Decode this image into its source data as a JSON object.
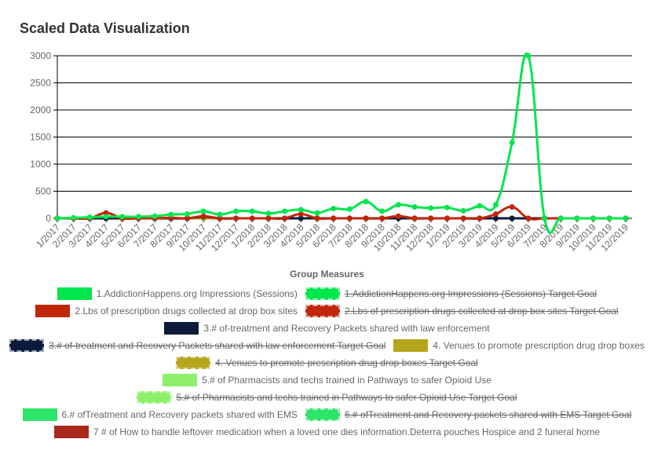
{
  "chart_data": {
    "type": "line",
    "title": "Scaled Data Visualization",
    "legend_title": "Group Measures",
    "categories": [
      "1/2017",
      "2/2017",
      "3/2017",
      "4/2017",
      "5/2017",
      "6/2017",
      "7/2017",
      "8/2017",
      "9/2017",
      "10/2017",
      "11/2017",
      "12/2017",
      "1/2018",
      "2/2018",
      "3/2018",
      "4/2018",
      "5/2018",
      "6/2018",
      "7/2018",
      "8/2018",
      "9/2018",
      "10/2018",
      "11/2018",
      "12/2018",
      "1/2019",
      "2/2019",
      "3/2019",
      "4/2019",
      "5/2019",
      "6/2019",
      "7/2019",
      "8/2019",
      "9/2019",
      "10/2019",
      "11/2019",
      "12/2019"
    ],
    "ylim": [
      0,
      3000
    ],
    "yticks": [
      0,
      500,
      1000,
      1500,
      2000,
      2500,
      3000
    ],
    "grid": true,
    "series": [
      {
        "name": "1.AddictionHappens.org Impressions (Sessions)",
        "color": "#00e64d",
        "values": [
          0,
          10,
          20,
          30,
          30,
          30,
          40,
          70,
          80,
          130,
          70,
          130,
          130,
          90,
          130,
          160,
          100,
          180,
          170,
          310,
          130,
          250,
          210,
          190,
          200,
          140,
          230,
          250,
          1400,
          3000,
          0,
          0,
          0,
          0,
          0,
          0
        ]
      },
      {
        "name": "1.AddictionHappens.org Impressions (Sessions) Target Goal",
        "color": "#00e64d",
        "hidden": true
      },
      {
        "name": "2.Lbs of prescription drugs collected at drop box sites",
        "color": "#c0260a",
        "values": [
          0,
          0,
          0,
          100,
          0,
          0,
          0,
          10,
          0,
          40,
          0,
          0,
          0,
          0,
          0,
          80,
          0,
          0,
          0,
          0,
          0,
          40,
          0,
          0,
          0,
          0,
          0,
          80,
          210,
          0,
          0,
          0,
          0,
          0,
          0,
          0
        ]
      },
      {
        "name": "2.Lbs of prescription drugs collected at drop box sites Target Goal",
        "color": "#c0260a",
        "hidden": true
      },
      {
        "name": "3.# of-treatment and Recovery Packets shared with law enforcement",
        "color": "#0d1b3a",
        "values": [
          0,
          0,
          0,
          0,
          0,
          0,
          0,
          0,
          0,
          30,
          0,
          0,
          0,
          0,
          0,
          0,
          0,
          0,
          0,
          0,
          0,
          0,
          0,
          0,
          0,
          0,
          0,
          0,
          0,
          0,
          0,
          0,
          0,
          0,
          0,
          0
        ]
      },
      {
        "name": "3.# of-treatment and Recovery Packets shared with law enforcement Target Goal",
        "color": "#0d1b3a",
        "hidden": true
      },
      {
        "name": "4. Venues to promote prescription drug drop boxes",
        "color": "#b5a61c",
        "values": [
          0,
          0,
          0,
          0,
          0,
          0,
          0,
          0,
          0,
          0,
          0,
          0,
          0,
          0,
          0,
          0,
          0,
          0,
          0,
          0,
          0,
          0,
          0,
          0,
          0,
          0,
          0,
          0,
          0,
          0,
          0,
          0,
          0,
          0,
          0,
          0
        ]
      },
      {
        "name": "4. Venues to promote prescription drug drop boxes Target Goal",
        "color": "#b5a61c",
        "hidden": true
      },
      {
        "name": "5.# of Pharmacists and techs trained in Pathways to safer Opioid Use",
        "color": "#8ef06a",
        "values": [
          0,
          0,
          0,
          0,
          0,
          0,
          0,
          0,
          0,
          0,
          0,
          0,
          0,
          0,
          0,
          0,
          0,
          0,
          0,
          0,
          0,
          0,
          0,
          0,
          0,
          0,
          0,
          0,
          0,
          0,
          0,
          0,
          0,
          0,
          0,
          0
        ]
      },
      {
        "name": "5.# of Pharmacists and techs trained in Pathways to safer Opioid Use Target Goal",
        "color": "#8ef06a",
        "hidden": true
      },
      {
        "name": "6.# ofTreatment and Recovery packets shared with EMS",
        "color": "#2de36a",
        "values": [
          0,
          0,
          0,
          0,
          0,
          0,
          0,
          0,
          0,
          0,
          0,
          0,
          0,
          0,
          0,
          0,
          0,
          0,
          0,
          0,
          0,
          0,
          0,
          0,
          0,
          0,
          0,
          0,
          0,
          0,
          0,
          0,
          0,
          0,
          0,
          0
        ]
      },
      {
        "name": "6.# ofTreatment and Recovery packets shared with EMS Target Goal",
        "color": "#2de36a",
        "hidden": true
      },
      {
        "name": "7 # of How to handle leftover medication when a loved one dies information.Deterra pouches Hospice and 2 funeral home",
        "color": "#a8281e",
        "values": [
          0,
          0,
          0,
          0,
          0,
          0,
          0,
          0,
          0,
          0,
          0,
          0,
          0,
          0,
          0,
          0,
          0,
          0,
          0,
          0,
          0,
          0,
          0,
          0,
          0,
          0,
          0,
          0,
          0,
          0,
          0,
          0,
          0,
          0,
          0,
          0
        ]
      }
    ]
  }
}
